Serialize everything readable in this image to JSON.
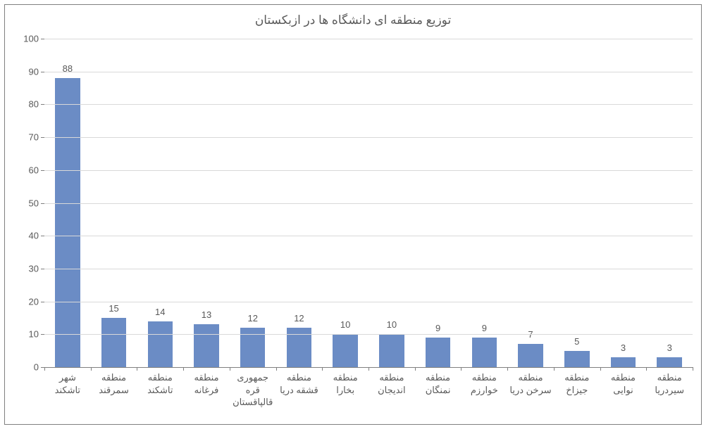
{
  "chart": {
    "type": "bar",
    "title": "توزیع منطقه ای دانشگاه ها در ازبکستان",
    "title_fontsize": 17,
    "label_fontsize": 13,
    "background_color": "#ffffff",
    "grid_color": "#d9d9d9",
    "axis_color": "#808080",
    "text_color": "#595959",
    "bar_color": "#6b8cc5",
    "bar_width": 0.54,
    "ylim": [
      0,
      100
    ],
    "ytick_step": 10,
    "yticks": [
      0,
      10,
      20,
      30,
      40,
      50,
      60,
      70,
      80,
      90,
      100
    ],
    "categories": [
      "شهر تاشکند",
      "منطقه سمرقند",
      "منطقه تاشکند",
      "منطقه فرغانه",
      "جمهوری قره قالپاقستان",
      "منطقه قشقه دریا",
      "منطقه بخارا",
      "منطقه اندیجان",
      "منطقه نمنگان",
      "منطقه خوارزم",
      "منطقه سرخن دریا",
      "منطقه جیزاخ",
      "منطقه نوایی",
      "منطقه سیردریا"
    ],
    "values": [
      88,
      15,
      14,
      13,
      12,
      12,
      10,
      10,
      9,
      9,
      7,
      5,
      3,
      3
    ]
  }
}
